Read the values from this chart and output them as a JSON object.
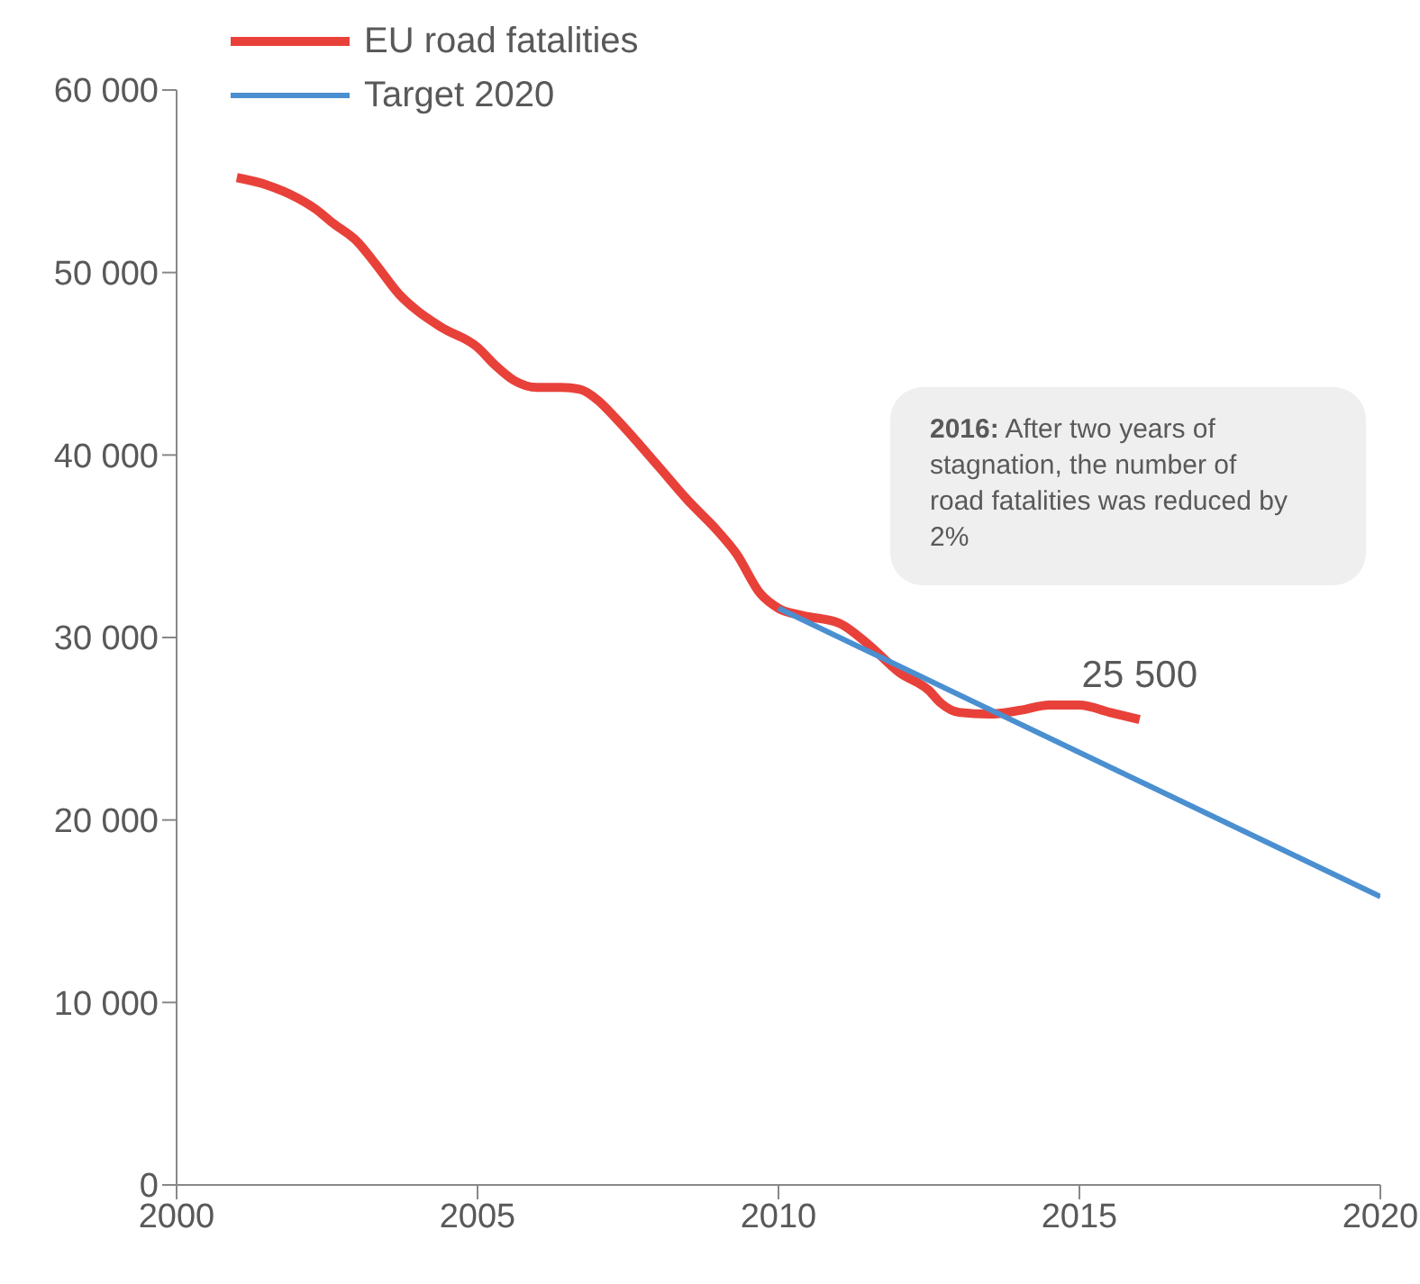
{
  "chart_data": {
    "type": "line",
    "xlim": [
      2000,
      2020
    ],
    "xticks": [
      2000,
      2005,
      2010,
      2015,
      2020
    ],
    "ylim": [
      0,
      60000
    ],
    "yticks": [
      {
        "value": 0,
        "label": "0"
      },
      {
        "value": 10000,
        "label": "10 000"
      },
      {
        "value": 20000,
        "label": "20 000"
      },
      {
        "value": 30000,
        "label": "30 000"
      },
      {
        "value": 40000,
        "label": "40 000"
      },
      {
        "value": 50000,
        "label": "50 000"
      },
      {
        "value": 60000,
        "label": "60 000"
      }
    ],
    "grid": false,
    "legend": "top left",
    "marker": "none",
    "line_style": "solid",
    "series": [
      {
        "name": "EU road fatalities",
        "color": "#e8413a",
        "x": [
          2001,
          2001.5,
          2002,
          2002.3,
          2002.6,
          2003,
          2003.3,
          2003.7,
          2004,
          2004.4,
          2005,
          2005.3,
          2005.6,
          2006,
          2006.4,
          2006.7,
          2007,
          2007.3,
          2008,
          2008.5,
          2009,
          2009.3,
          2009.7,
          2010,
          2010.4,
          2011,
          2011.5,
          2012,
          2012.5,
          2012.7,
          2013,
          2013.5,
          2014,
          2014.5,
          2015,
          2015.5,
          2016
        ],
        "values": [
          55200,
          54800,
          54100,
          53500,
          52700,
          51700,
          50500,
          48800,
          47900,
          47000,
          45900,
          44900,
          44100,
          43700,
          43700,
          43600,
          43000,
          42000,
          39400,
          37500,
          35800,
          34600,
          32400,
          31600,
          31200,
          30800,
          29600,
          28100,
          27100,
          26400,
          25900,
          25800,
          26000,
          26300,
          26300,
          25900,
          25500
        ]
      },
      {
        "name": "Target 2020",
        "color": "#4a8fd0",
        "x": [
          2010,
          2020
        ],
        "values": [
          31600,
          15800
        ]
      }
    ],
    "annotations": [
      {
        "text": "25 500",
        "x": 2016,
        "y": 25500
      },
      "2016: After two years of stagnation, the number of road fatalities was reduced by 2%"
    ]
  }
}
